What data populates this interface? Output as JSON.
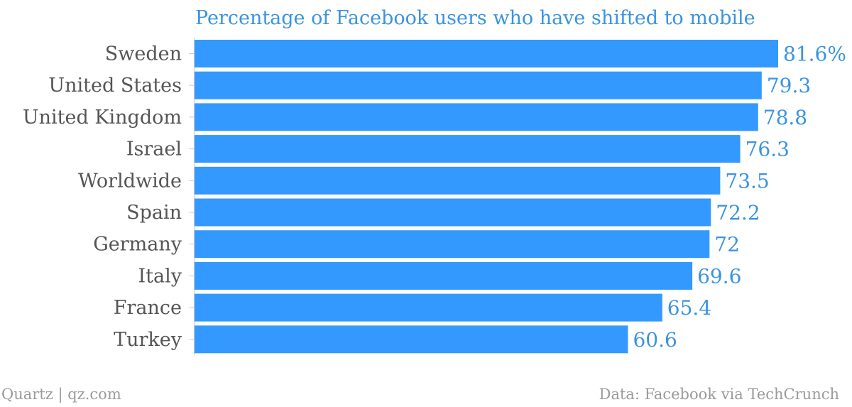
{
  "chart_data": {
    "type": "bar",
    "orientation": "horizontal",
    "title": "Percentage of Facebook users who have shifted to mobile",
    "categories": [
      "Sweden",
      "United States",
      "United Kingdom",
      "Israel",
      "Worldwide",
      "Spain",
      "Germany",
      "Italy",
      "France",
      "Turkey"
    ],
    "values": [
      81.6,
      79.3,
      78.8,
      76.3,
      73.5,
      72.2,
      72,
      69.6,
      65.4,
      60.6
    ],
    "value_labels": [
      "81.6%",
      "79.3",
      "78.8",
      "76.3",
      "73.5",
      "72.2",
      "72",
      "69.6",
      "65.4",
      "60.6"
    ],
    "xlim": [
      0,
      81.6
    ],
    "xlabel": "",
    "ylabel": "",
    "grid": false,
    "legend": "none",
    "bar_color": "#3399ff",
    "title_color": "#3a93e0",
    "label_color": "#555555"
  },
  "footer": {
    "left": "Quartz | qz.com",
    "right": "Data: Facebook via TechCrunch"
  }
}
